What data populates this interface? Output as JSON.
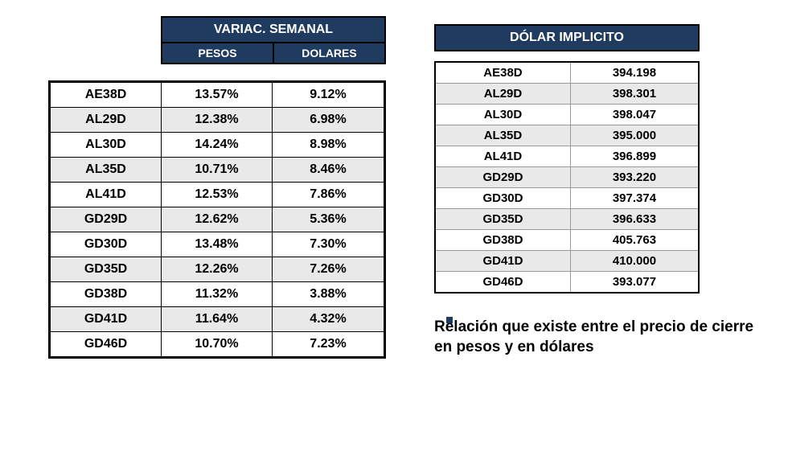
{
  "colors": {
    "header_bg": "#1f3b60",
    "header_text": "#ffffff",
    "row_alt_bg": "#e9e9e9",
    "border": "#000000",
    "text": "#000000"
  },
  "left": {
    "title": "VARIAC. SEMANAL",
    "col_pesos": "PESOS",
    "col_dolares": "DOLARES",
    "rows": [
      {
        "ticker": "AE38D",
        "pesos": "13.57%",
        "dolares": "9.12%"
      },
      {
        "ticker": "AL29D",
        "pesos": "12.38%",
        "dolares": "6.98%"
      },
      {
        "ticker": "AL30D",
        "pesos": "14.24%",
        "dolares": "8.98%"
      },
      {
        "ticker": "AL35D",
        "pesos": "10.71%",
        "dolares": "8.46%"
      },
      {
        "ticker": "AL41D",
        "pesos": "12.53%",
        "dolares": "7.86%"
      },
      {
        "ticker": "GD29D",
        "pesos": "12.62%",
        "dolares": "5.36%"
      },
      {
        "ticker": "GD30D",
        "pesos": "13.48%",
        "dolares": "7.30%"
      },
      {
        "ticker": "GD35D",
        "pesos": "12.26%",
        "dolares": "7.26%"
      },
      {
        "ticker": "GD38D",
        "pesos": "11.32%",
        "dolares": "3.88%"
      },
      {
        "ticker": "GD41D",
        "pesos": "11.64%",
        "dolares": "4.32%"
      },
      {
        "ticker": "GD46D",
        "pesos": "10.70%",
        "dolares": "7.23%"
      }
    ]
  },
  "right": {
    "title": "DÓLAR IMPLICITO",
    "rows": [
      {
        "ticker": "AE38D",
        "value": "394.198"
      },
      {
        "ticker": "AL29D",
        "value": "398.301"
      },
      {
        "ticker": "AL30D",
        "value": "398.047"
      },
      {
        "ticker": "AL35D",
        "value": "395.000"
      },
      {
        "ticker": "AL41D",
        "value": "396.899"
      },
      {
        "ticker": "GD29D",
        "value": "393.220"
      },
      {
        "ticker": "GD30D",
        "value": "397.374"
      },
      {
        "ticker": "GD35D",
        "value": "396.633"
      },
      {
        "ticker": "GD38D",
        "value": "405.763"
      },
      {
        "ticker": "GD41D",
        "value": "410.000"
      },
      {
        "ticker": "GD46D",
        "value": "393.077"
      }
    ]
  },
  "caption": "Relación que existe entre el precio de cierre en pesos y en dólares"
}
